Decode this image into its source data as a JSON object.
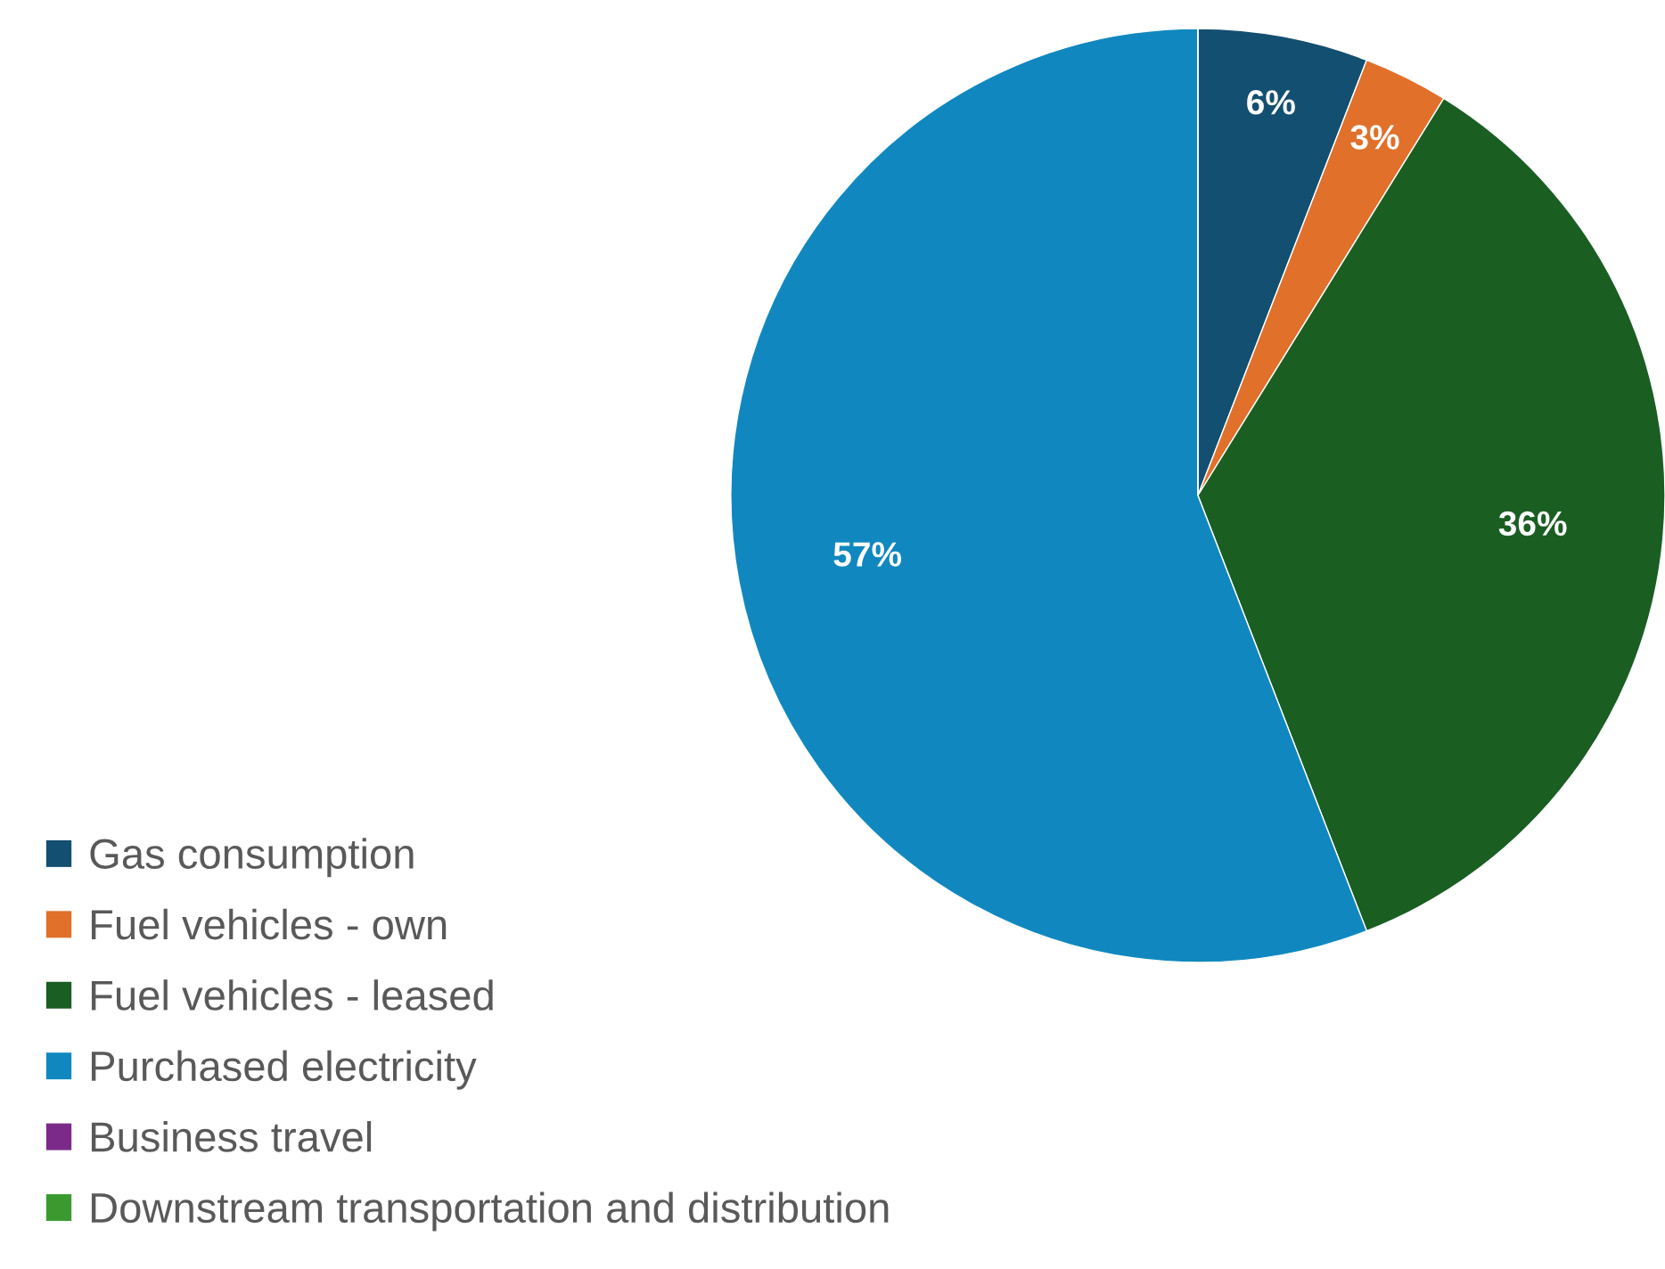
{
  "chart_data": {
    "type": "pie",
    "categories": [
      "Gas consumption",
      "Fuel vehicles - own",
      "Fuel vehicles - leased",
      "Purchased electricity",
      "Business travel",
      "Downstream transportation and distribution"
    ],
    "values": [
      6,
      3,
      36,
      57,
      0,
      0
    ],
    "value_labels": [
      "6%",
      "3%",
      "36%",
      "57%",
      null,
      null
    ],
    "colors": [
      "#134f70",
      "#e0702a",
      "#1a5e22",
      "#1088bf",
      "#7b2a8a",
      "#3a9a30"
    ],
    "legend": "bottom left"
  }
}
